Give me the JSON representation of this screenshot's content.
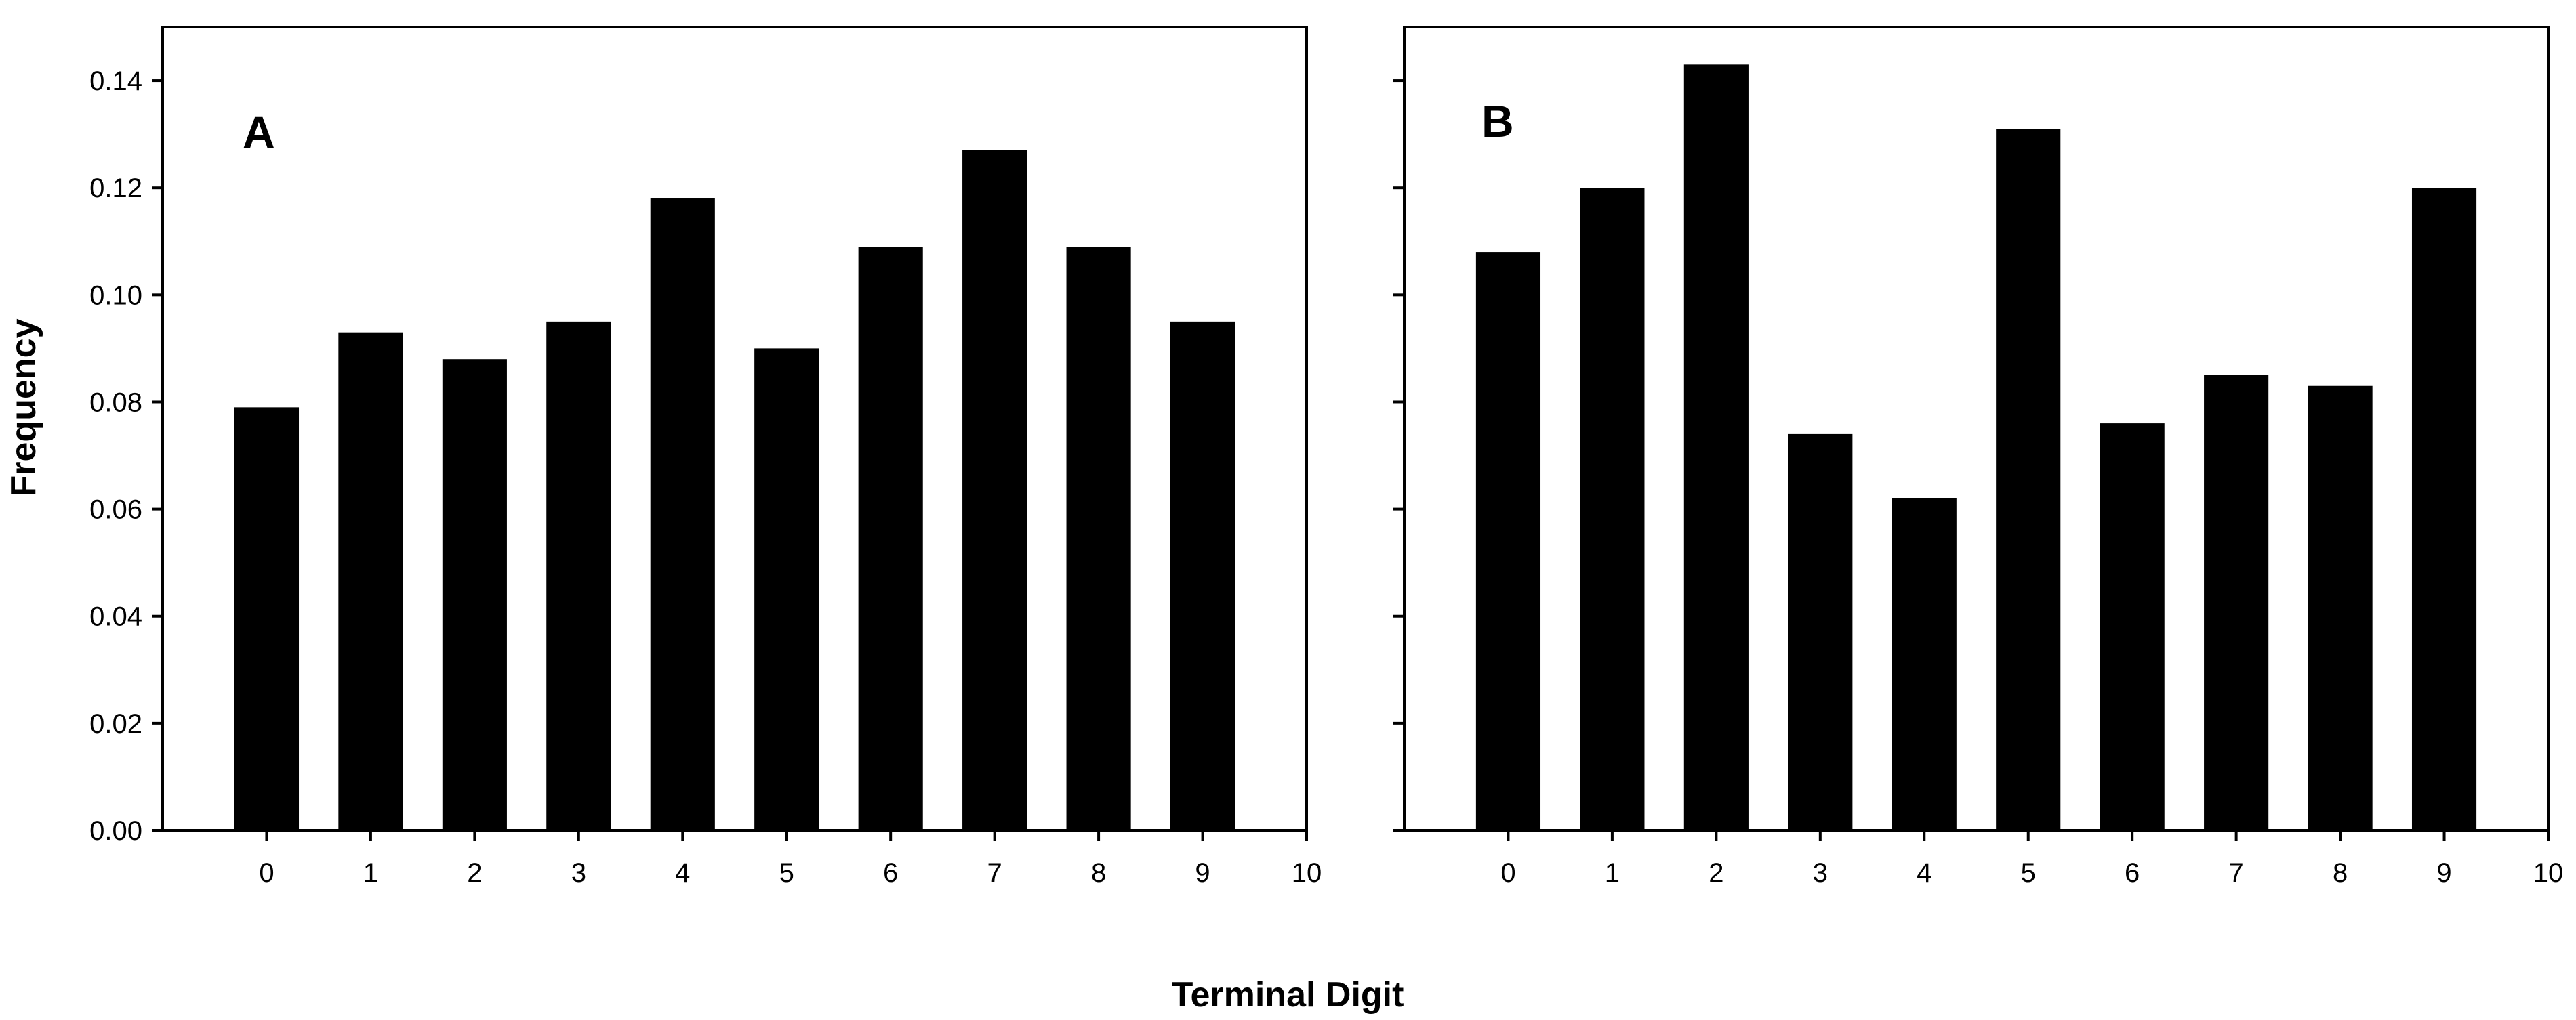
{
  "figure": {
    "ylabel": "Frequency",
    "xlabel": "Terminal Digit"
  },
  "chart_data": [
    {
      "type": "bar",
      "panel_label": "A",
      "categories": [
        0,
        1,
        2,
        3,
        4,
        5,
        6,
        7,
        8,
        9
      ],
      "values": [
        0.079,
        0.093,
        0.088,
        0.095,
        0.118,
        0.09,
        0.109,
        0.127,
        0.109,
        0.095
      ],
      "xlabel": "Terminal Digit",
      "ylabel": "Frequency",
      "xlim": [
        -1,
        10
      ],
      "ylim": [
        0,
        0.15
      ],
      "xticks": [
        0,
        1,
        2,
        3,
        4,
        5,
        6,
        7,
        8,
        9,
        10
      ],
      "yticks": [
        0.0,
        0.02,
        0.04,
        0.06,
        0.08,
        0.1,
        0.12,
        0.14
      ],
      "ytick_labels": [
        "0.00",
        "0.02",
        "0.04",
        "0.06",
        "0.08",
        "0.10",
        "0.12",
        "0.14"
      ],
      "bar_color": "#000000",
      "grid": false,
      "legend": "none"
    },
    {
      "type": "bar",
      "panel_label": "B",
      "categories": [
        0,
        1,
        2,
        3,
        4,
        5,
        6,
        7,
        8,
        9
      ],
      "values": [
        0.108,
        0.12,
        0.143,
        0.074,
        0.062,
        0.131,
        0.076,
        0.085,
        0.083,
        0.12
      ],
      "xlabel": "Terminal Digit",
      "ylabel": "Frequency",
      "xlim": [
        -1,
        10
      ],
      "ylim": [
        0,
        0.15
      ],
      "xticks": [
        0,
        1,
        2,
        3,
        4,
        5,
        6,
        7,
        8,
        9,
        10
      ],
      "yticks": [
        0.0,
        0.02,
        0.04,
        0.06,
        0.08,
        0.1,
        0.12,
        0.14
      ],
      "ytick_labels": [],
      "bar_color": "#000000",
      "grid": false,
      "legend": "none"
    }
  ]
}
